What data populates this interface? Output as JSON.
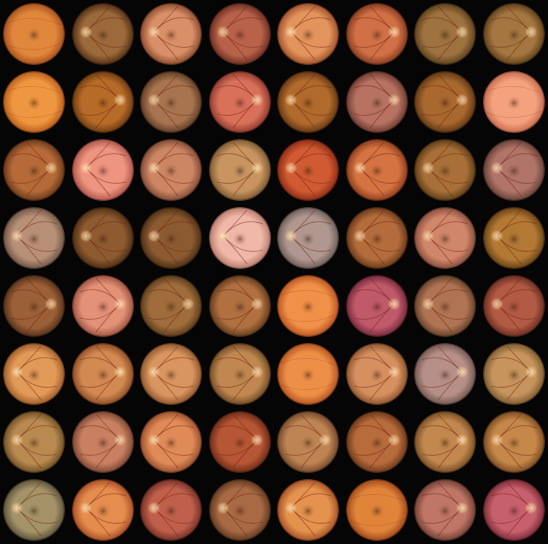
{
  "grid": {
    "rows": 8,
    "cols": 8,
    "background": "#000000"
  },
  "images": [
    {
      "base": "#e1873c",
      "rim": "#a8501c",
      "disc": "none",
      "brightness": 0.6
    },
    {
      "base": "#9c6a3a",
      "rim": "#4f2e13",
      "disc": "left",
      "brightness": 0.5
    },
    {
      "base": "#d98f68",
      "rim": "#8a4a2c",
      "disc": "left",
      "brightness": 0.6
    },
    {
      "base": "#b8624a",
      "rim": "#6b2d20",
      "disc": "left",
      "brightness": 0.4
    },
    {
      "base": "#e2945c",
      "rim": "#a0502a",
      "disc": "left",
      "brightness": 0.7
    },
    {
      "base": "#d17046",
      "rim": "#843a20",
      "disc": "right",
      "brightness": 0.6
    },
    {
      "base": "#9e7340",
      "rim": "#5b3f1a",
      "disc": "right",
      "brightness": 0.4
    },
    {
      "base": "#a57740",
      "rim": "#5e3e18",
      "disc": "right",
      "brightness": 0.4
    },
    {
      "base": "#ef9740",
      "rim": "#b85c1c",
      "disc": "none",
      "brightness": 0.6
    },
    {
      "base": "#b76b28",
      "rim": "#6a3a10",
      "disc": "right",
      "brightness": 0.5
    },
    {
      "base": "#a87450",
      "rim": "#5e3c24",
      "disc": "left",
      "brightness": 0.4
    },
    {
      "base": "#d9705a",
      "rim": "#8e3a2e",
      "disc": "right",
      "brightness": 0.6
    },
    {
      "base": "#b06a2c",
      "rim": "#643612",
      "disc": "left",
      "brightness": 0.5
    },
    {
      "base": "#b77262",
      "rim": "#6c3b30",
      "disc": "right",
      "brightness": 0.5
    },
    {
      "base": "#a8682e",
      "rim": "#5e3614",
      "disc": "right",
      "brightness": 0.4
    },
    {
      "base": "#f4a27e",
      "rim": "#c4684c",
      "disc": "none",
      "brightness": 0.6
    },
    {
      "base": "#b56a38",
      "rim": "#6a3818",
      "disc": "right",
      "brightness": 0.4
    },
    {
      "base": "#ee9480",
      "rim": "#b0564a",
      "disc": "left",
      "brightness": 0.7
    },
    {
      "base": "#cc8664",
      "rim": "#7e4a34",
      "disc": "left",
      "brightness": 0.6
    },
    {
      "base": "#c89460",
      "rim": "#7c5830",
      "disc": "right",
      "brightness": 0.6
    },
    {
      "base": "#d05a32",
      "rim": "#8a2c16",
      "disc": "left",
      "brightness": 0.5
    },
    {
      "base": "#d57442",
      "rim": "#8c3c1c",
      "disc": "left",
      "brightness": 0.5
    },
    {
      "base": "#a87038",
      "rim": "#5c3a16",
      "disc": "left",
      "brightness": 0.4
    },
    {
      "base": "#b07468",
      "rim": "#654036",
      "disc": "left",
      "brightness": 0.5
    },
    {
      "base": "#b89078",
      "rim": "#6e5444",
      "disc": "left",
      "brightness": 0.6
    },
    {
      "base": "#8e5a30",
      "rim": "#4c2e14",
      "disc": "left",
      "brightness": 0.4
    },
    {
      "base": "#8c5a30",
      "rim": "#4a2e14",
      "disc": "left",
      "brightness": 0.4
    },
    {
      "base": "#f0b8a8",
      "rim": "#b87a6c",
      "disc": "left",
      "brightness": 0.9
    },
    {
      "base": "#b09890",
      "rim": "#6e5c58",
      "disc": "left",
      "brightness": 0.6
    },
    {
      "base": "#b46c3c",
      "rim": "#68381a",
      "disc": "left",
      "brightness": 0.4
    },
    {
      "base": "#d0866a",
      "rim": "#864c3a",
      "disc": "left",
      "brightness": 0.5
    },
    {
      "base": "#b27834",
      "rim": "#664214",
      "disc": "left",
      "brightness": 0.4
    },
    {
      "base": "#9c6038",
      "rim": "#54301a",
      "disc": "right",
      "brightness": 0.4
    },
    {
      "base": "#e39278",
      "rim": "#9c5240",
      "disc": "right",
      "brightness": 0.6
    },
    {
      "base": "#a06c3c",
      "rim": "#583a1a",
      "disc": "right",
      "brightness": 0.4
    },
    {
      "base": "#b07040",
      "rim": "#603a1c",
      "disc": "right",
      "brightness": 0.4
    },
    {
      "base": "#f19048",
      "rim": "#b85420",
      "disc": "none",
      "brightness": 0.7
    },
    {
      "base": "#c05a6a",
      "rim": "#74283a",
      "disc": "right",
      "brightness": 0.6
    },
    {
      "base": "#b07454",
      "rim": "#624028",
      "disc": "left",
      "brightness": 0.5
    },
    {
      "base": "#b25a44",
      "rim": "#682c20",
      "disc": "left",
      "brightness": 0.4
    },
    {
      "base": "#e29a58",
      "rim": "#9e5c2a",
      "disc": "left",
      "brightness": 0.6
    },
    {
      "base": "#d28a52",
      "rim": "#8c4c24",
      "disc": "right",
      "brightness": 0.8
    },
    {
      "base": "#d99560",
      "rim": "#90562c",
      "disc": "left",
      "brightness": 0.6
    },
    {
      "base": "#c08850",
      "rim": "#704a24",
      "disc": "right",
      "brightness": 0.5
    },
    {
      "base": "#ee8f48",
      "rim": "#b4541e",
      "disc": "none",
      "brightness": 0.6
    },
    {
      "base": "#d69060",
      "rim": "#8c542c",
      "disc": "right",
      "brightness": 0.6
    },
    {
      "base": "#b69088",
      "rim": "#70564e",
      "disc": "right",
      "brightness": 0.6
    },
    {
      "base": "#c6945c",
      "rim": "#7a5a30",
      "disc": "right",
      "brightness": 0.5
    },
    {
      "base": "#b98a50",
      "rim": "#6c4e24",
      "disc": "left",
      "brightness": 0.5
    },
    {
      "base": "#c88060",
      "rim": "#7c4634",
      "disc": "right",
      "brightness": 0.5
    },
    {
      "base": "#e08a58",
      "rim": "#98502c",
      "disc": "left",
      "brightness": 0.6
    },
    {
      "base": "#b65634",
      "rim": "#6a2a16",
      "disc": "right",
      "brightness": 0.5
    },
    {
      "base": "#bf8454",
      "rim": "#72482a",
      "disc": "right",
      "brightness": 0.5
    },
    {
      "base": "#b86c3c",
      "rim": "#6a381a",
      "disc": "right",
      "brightness": 0.4
    },
    {
      "base": "#c2884e",
      "rim": "#744c24",
      "disc": "right",
      "brightness": 0.6
    },
    {
      "base": "#c6884a",
      "rim": "#784a20",
      "disc": "left",
      "brightness": 0.5
    },
    {
      "base": "#a49268",
      "rim": "#5c523a",
      "disc": "left",
      "brightness": 0.6
    },
    {
      "base": "#e58d4e",
      "rim": "#a84e24",
      "disc": "left",
      "brightness": 0.5
    },
    {
      "base": "#c0604c",
      "rim": "#722e24",
      "disc": "left",
      "brightness": 0.5
    },
    {
      "base": "#a86a44",
      "rim": "#5e3820",
      "disc": "left",
      "brightness": 0.4
    },
    {
      "base": "#e4924e",
      "rim": "#a45024",
      "disc": "left",
      "brightness": 0.5
    },
    {
      "base": "#e0843a",
      "rim": "#a04818",
      "disc": "none",
      "brightness": 0.5
    },
    {
      "base": "#bf7666",
      "rim": "#703e34",
      "disc": "right",
      "brightness": 0.6
    },
    {
      "base": "#c7606c",
      "rim": "#782a36",
      "disc": "right",
      "brightness": 0.5
    }
  ]
}
